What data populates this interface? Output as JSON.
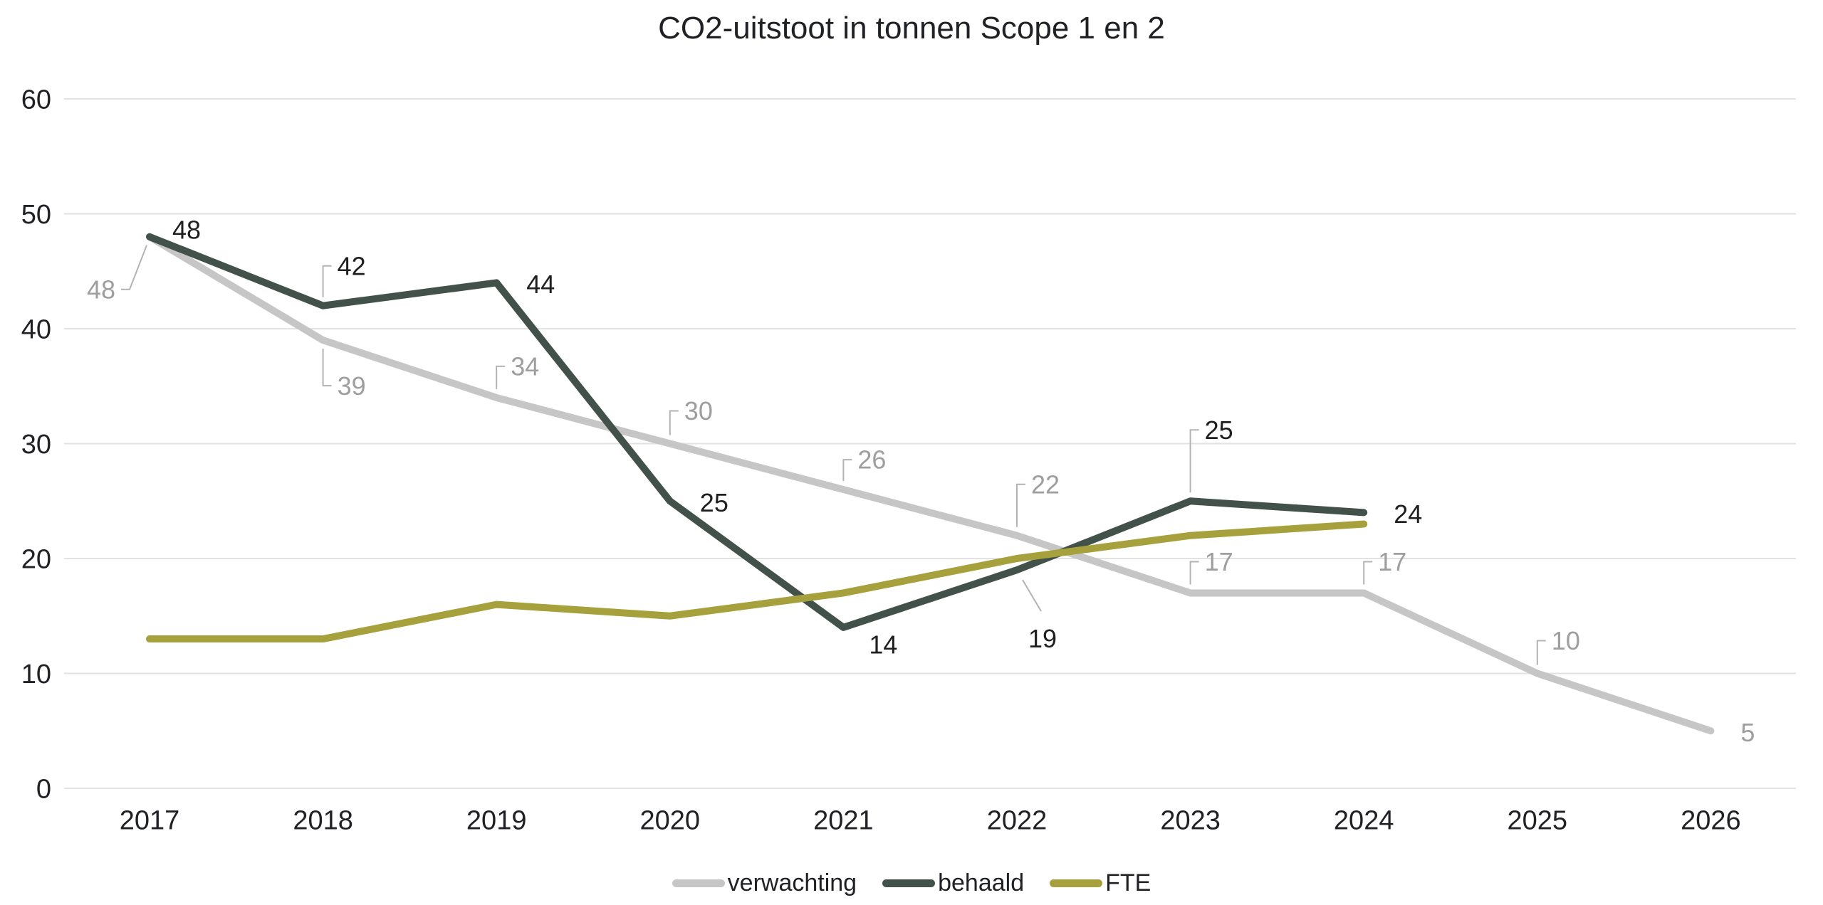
{
  "page": {
    "background": "#ffffff"
  },
  "chart_data": {
    "type": "line",
    "title": "CO2-uitstoot in tonnen Scope 1 en 2",
    "x_categories": [
      "2017",
      "2018",
      "2019",
      "2020",
      "2021",
      "2022",
      "2023",
      "2024",
      "2025",
      "2026"
    ],
    "y_ticks": [
      0,
      10,
      20,
      30,
      40,
      50,
      60
    ],
    "ylim": [
      0,
      60
    ],
    "xlabel": "",
    "ylabel": "",
    "grid": true,
    "legend_position": "bottom",
    "colors": {
      "grid": "#e2e2e2",
      "axis_text": "#202124",
      "callout": "#b3b3b3",
      "background": "#ffffff"
    },
    "series": [
      {
        "name": "verwachting",
        "color": "#c6c6c6",
        "label_color": "#9e9e9e",
        "values": [
          48,
          39,
          34,
          30,
          26,
          22,
          17,
          17,
          10,
          5
        ],
        "data_labels": [
          "48",
          "39",
          "34",
          "30",
          "26",
          "22",
          "17",
          "17",
          "10",
          "5"
        ],
        "label_placements": [
          "left-callout",
          "below-callout:52",
          "above-callout:44",
          "above-callout:46",
          "above-callout:42",
          "above-callout:72",
          "above-callout:44",
          "above-callout:44",
          "above-callout:46",
          "right"
        ]
      },
      {
        "name": "behaald",
        "color": "#42524a",
        "label_color": "#1f1f1f",
        "values": [
          48,
          42,
          44,
          25,
          14,
          19,
          25,
          24
        ],
        "data_labels": [
          "48",
          "42",
          "44",
          "25",
          "14",
          "19",
          "25",
          "24"
        ],
        "label_placements": [
          "right-up",
          "above-callout:56",
          "right",
          "right",
          "right-down",
          "below-diagonal",
          "above-callout:100",
          "right"
        ]
      },
      {
        "name": "FTE",
        "color": "#a6a13c",
        "label_color": "#1f1f1f",
        "values": [
          13,
          13,
          16,
          15,
          17,
          20,
          22,
          23
        ],
        "data_labels": [],
        "label_placements": []
      }
    ]
  }
}
